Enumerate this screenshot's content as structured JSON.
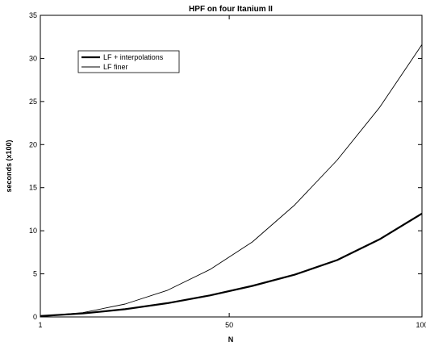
{
  "chart_data": {
    "type": "line",
    "title": "HPF on four Itanium II",
    "xlabel": "N",
    "ylabel": "seconds (x100)",
    "xlim": [
      1,
      100
    ],
    "ylim": [
      0,
      35
    ],
    "x_ticks": [
      1,
      50,
      100
    ],
    "y_ticks": [
      0,
      5,
      10,
      15,
      20,
      25,
      30,
      35
    ],
    "grid": false,
    "legend_position": "top-left",
    "x": [
      1,
      12,
      23,
      34,
      45,
      56,
      67,
      78,
      89,
      100
    ],
    "series": [
      {
        "name": "LF + interpolations",
        "style": "thick",
        "color": "#000000",
        "values": [
          0.1,
          0.4,
          0.9,
          1.6,
          2.5,
          3.6,
          4.9,
          6.6,
          9.0,
          12.0
        ]
      },
      {
        "name": "LF finer",
        "style": "thin",
        "color": "#000000",
        "values": [
          0.1,
          0.5,
          1.5,
          3.1,
          5.5,
          8.7,
          13.0,
          18.2,
          24.3,
          31.6
        ]
      }
    ]
  }
}
